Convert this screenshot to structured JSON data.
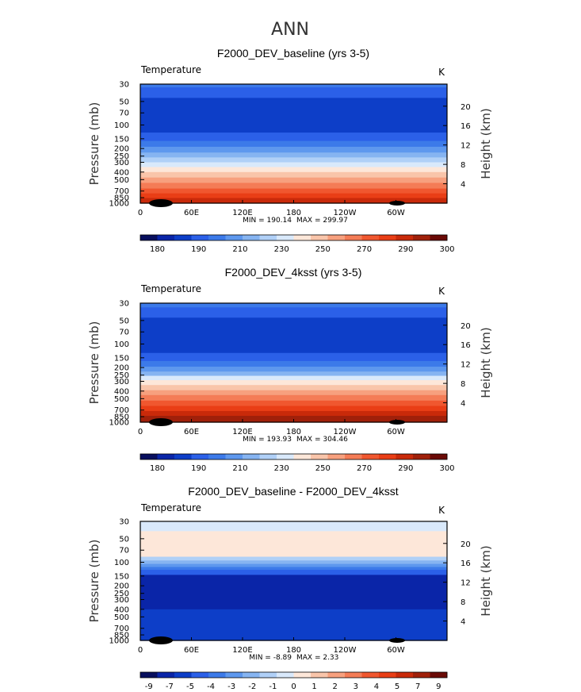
{
  "main_title": "ANN",
  "chart_data": [
    {
      "type": "heatmap",
      "title": "F2000_DEV_baseline (yrs 3-5)",
      "variable": "Temperature",
      "units": "K",
      "ylabel": "Pressure (mb)",
      "y2label": "Height (km)",
      "pressure_ticks": [
        "30",
        "50",
        "70",
        "100",
        "150",
        "200",
        "250",
        "300",
        "400",
        "500",
        "700",
        "850",
        "1000"
      ],
      "height_ticks": [
        "20",
        "16",
        "12",
        "8",
        "4"
      ],
      "lon_ticks": [
        "0",
        "60E",
        "120E",
        "180",
        "120W",
        "60W"
      ],
      "min_label": "MIN = 190.14",
      "max_label": "MAX = 299.97",
      "palette": [
        "#080f5e",
        "#0a25a8",
        "#0d3ec8",
        "#2b60e8",
        "#3c7ae9",
        "#5e98ee",
        "#86b4f1",
        "#b0d0f7",
        "#d9e9fb",
        "#fde7d9",
        "#f9c5aa",
        "#f7a07e",
        "#f47c56",
        "#f0572f",
        "#e93e16",
        "#c92a0a",
        "#a0200a",
        "#6a0a06"
      ],
      "colorbar_labels": [
        "180",
        "190",
        "210",
        "230",
        "250",
        "270",
        "290",
        "300"
      ],
      "bands": [
        {
          "p_top": 30,
          "p_bottom": 33,
          "level": 4
        },
        {
          "p_top": 33,
          "p_bottom": 45,
          "level": 3
        },
        {
          "p_top": 45,
          "p_bottom": 125,
          "level": 2
        },
        {
          "p_top": 125,
          "p_bottom": 160,
          "level": 3
        },
        {
          "p_top": 160,
          "p_bottom": 190,
          "level": 4
        },
        {
          "p_top": 190,
          "p_bottom": 225,
          "level": 5
        },
        {
          "p_top": 225,
          "p_bottom": 260,
          "level": 6
        },
        {
          "p_top": 260,
          "p_bottom": 300,
          "level": 7
        },
        {
          "p_top": 300,
          "p_bottom": 345,
          "level": 8
        },
        {
          "p_top": 345,
          "p_bottom": 400,
          "level": 9
        },
        {
          "p_top": 400,
          "p_bottom": 470,
          "level": 10
        },
        {
          "p_top": 470,
          "p_bottom": 550,
          "level": 11
        },
        {
          "p_top": 550,
          "p_bottom": 650,
          "level": 12
        },
        {
          "p_top": 650,
          "p_bottom": 750,
          "level": 13
        },
        {
          "p_top": 750,
          "p_bottom": 860,
          "level": 14
        },
        {
          "p_top": 860,
          "p_bottom": 1000,
          "level": 15
        }
      ]
    },
    {
      "type": "heatmap",
      "title": "F2000_DEV_4ksst (yrs 3-5)",
      "variable": "Temperature",
      "units": "K",
      "ylabel": "Pressure (mb)",
      "y2label": "Height (km)",
      "pressure_ticks": [
        "30",
        "50",
        "70",
        "100",
        "150",
        "200",
        "250",
        "300",
        "400",
        "500",
        "700",
        "850",
        "1000"
      ],
      "height_ticks": [
        "20",
        "16",
        "12",
        "8",
        "4"
      ],
      "lon_ticks": [
        "0",
        "60E",
        "120E",
        "180",
        "120W",
        "60W"
      ],
      "min_label": "MIN = 193.93",
      "max_label": "MAX = 304.46",
      "palette": [
        "#080f5e",
        "#0a25a8",
        "#0d3ec8",
        "#2b60e8",
        "#3c7ae9",
        "#5e98ee",
        "#86b4f1",
        "#b0d0f7",
        "#d9e9fb",
        "#fde7d9",
        "#f9c5aa",
        "#f7a07e",
        "#f47c56",
        "#f0572f",
        "#e93e16",
        "#c92a0a",
        "#a0200a",
        "#6a0a06"
      ],
      "colorbar_labels": [
        "180",
        "190",
        "210",
        "230",
        "250",
        "270",
        "290",
        "300"
      ],
      "bands": [
        {
          "p_top": 30,
          "p_bottom": 34,
          "level": 4
        },
        {
          "p_top": 34,
          "p_bottom": 46,
          "level": 3
        },
        {
          "p_top": 46,
          "p_bottom": 130,
          "level": 2
        },
        {
          "p_top": 130,
          "p_bottom": 165,
          "level": 3
        },
        {
          "p_top": 165,
          "p_bottom": 195,
          "level": 4
        },
        {
          "p_top": 195,
          "p_bottom": 225,
          "level": 5
        },
        {
          "p_top": 225,
          "p_bottom": 255,
          "level": 6
        },
        {
          "p_top": 255,
          "p_bottom": 290,
          "level": 8
        },
        {
          "p_top": 290,
          "p_bottom": 335,
          "level": 9
        },
        {
          "p_top": 335,
          "p_bottom": 390,
          "level": 10
        },
        {
          "p_top": 390,
          "p_bottom": 450,
          "level": 11
        },
        {
          "p_top": 450,
          "p_bottom": 530,
          "level": 12
        },
        {
          "p_top": 530,
          "p_bottom": 620,
          "level": 13
        },
        {
          "p_top": 620,
          "p_bottom": 720,
          "level": 14
        },
        {
          "p_top": 720,
          "p_bottom": 830,
          "level": 15
        },
        {
          "p_top": 830,
          "p_bottom": 1000,
          "level": 16
        }
      ]
    },
    {
      "type": "heatmap",
      "title": "F2000_DEV_baseline - F2000_DEV_4ksst",
      "variable": "Temperature",
      "units": "K",
      "ylabel": "Pressure (mb)",
      "y2label": "Height (km)",
      "pressure_ticks": [
        "30",
        "50",
        "70",
        "100",
        "150",
        "200",
        "250",
        "300",
        "400",
        "500",
        "700",
        "850",
        "1000"
      ],
      "height_ticks": [
        "20",
        "16",
        "12",
        "8",
        "4"
      ],
      "lon_ticks": [
        "0",
        "60E",
        "120E",
        "180",
        "120W",
        "60W"
      ],
      "min_label": "MIN = -8.89",
      "max_label": "MAX = 2.33",
      "palette": [
        "#080f5e",
        "#0a25a8",
        "#0d3ec8",
        "#2b60e8",
        "#3c7ae9",
        "#5e98ee",
        "#86b4f1",
        "#b0d0f7",
        "#d9e9fb",
        "#fde7d9",
        "#f9c5aa",
        "#f7a07e",
        "#f47c56",
        "#f0572f",
        "#e93e16",
        "#c92a0a",
        "#a0200a",
        "#6a0a06"
      ],
      "colorbar_labels": [
        "-9",
        "-7",
        "-5",
        "-4",
        "-3",
        "-2",
        "-1",
        "0",
        "1",
        "2",
        "3",
        "4",
        "5",
        "7",
        "9"
      ],
      "bands": [
        {
          "p_top": 30,
          "p_bottom": 40,
          "level": 8
        },
        {
          "p_top": 40,
          "p_bottom": 85,
          "level": 9
        },
        {
          "p_top": 85,
          "p_bottom": 95,
          "level": 7
        },
        {
          "p_top": 95,
          "p_bottom": 105,
          "level": 6
        },
        {
          "p_top": 105,
          "p_bottom": 115,
          "level": 5
        },
        {
          "p_top": 115,
          "p_bottom": 125,
          "level": 4
        },
        {
          "p_top": 125,
          "p_bottom": 145,
          "level": 3
        },
        {
          "p_top": 145,
          "p_bottom": 400,
          "level": 1
        },
        {
          "p_top": 400,
          "p_bottom": 1000,
          "level": 2
        }
      ]
    }
  ]
}
